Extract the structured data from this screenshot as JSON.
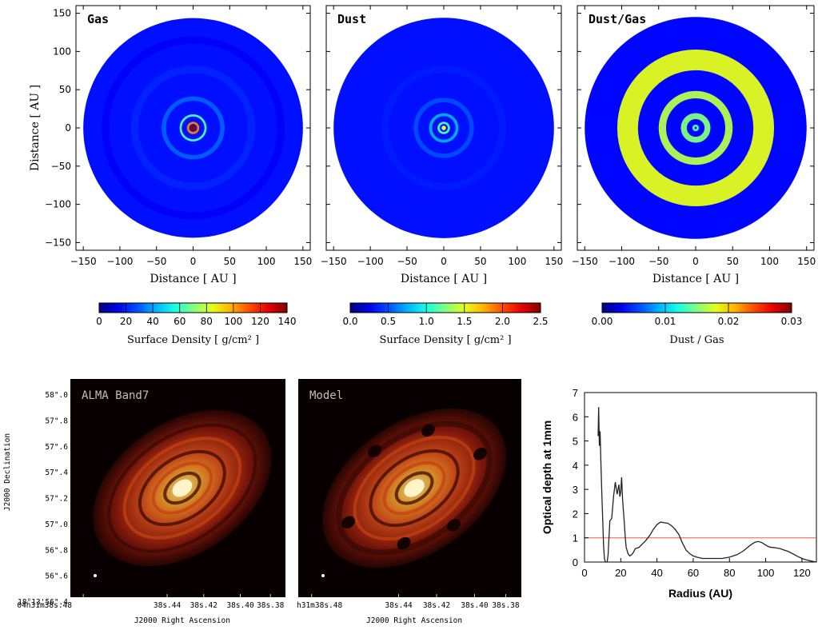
{
  "chart_data": [
    {
      "type": "heatmap",
      "title": "Gas",
      "xlabel": "Distance [ AU ]",
      "ylabel": "Distance [ AU ]",
      "xlim": [
        -160,
        160
      ],
      "ylim": [
        -160,
        160
      ],
      "xticks": [
        -150,
        -100,
        -50,
        0,
        50,
        100,
        150
      ],
      "yticks": [
        150,
        100,
        50,
        0,
        -50,
        -100,
        -150
      ],
      "colorbar": {
        "label": "Surface Density [ g/cm² ]",
        "range": [
          0,
          140
        ],
        "ticks": [
          "0",
          "20",
          "40",
          "60",
          "80",
          "100",
          "120",
          "140"
        ]
      },
      "colormap": "jet",
      "disk_radius": 150,
      "rings": [
        {
          "radius": 0,
          "width": 4,
          "value": 1.0
        },
        {
          "radius": 7,
          "width": 3,
          "value": 0.75
        },
        {
          "radius": 17,
          "width": 3,
          "value": 0.45
        },
        {
          "radius": 40,
          "width": 6,
          "value": 0.22
        },
        {
          "radius": 80,
          "width": 10,
          "value": 0.16
        },
        {
          "radius": 120,
          "width": 10,
          "value": 0.12
        }
      ]
    },
    {
      "type": "heatmap",
      "title": "Dust",
      "xlabel": "Distance [ AU ]",
      "ylabel": "",
      "xlim": [
        -160,
        160
      ],
      "ylim": [
        -160,
        160
      ],
      "xticks": [
        -150,
        -100,
        -50,
        0,
        50,
        100,
        150
      ],
      "colorbar": {
        "label": "Surface Density [ g/cm² ]",
        "range": [
          0.0,
          2.5
        ],
        "ticks": [
          "0.0",
          "0.5",
          "1.0",
          "1.5",
          "2.0",
          "2.5"
        ]
      },
      "colormap": "jet",
      "disk_radius": 150,
      "rings": [
        {
          "radius": 0,
          "width": 3,
          "value": 0.6
        },
        {
          "radius": 7,
          "width": 3,
          "value": 0.45
        },
        {
          "radius": 18,
          "width": 4,
          "value": 0.3
        },
        {
          "radius": 38,
          "width": 6,
          "value": 0.2
        },
        {
          "radius": 80,
          "width": 10,
          "value": 0.15
        }
      ]
    },
    {
      "type": "heatmap",
      "title": "Dust/Gas",
      "xlabel": "Distance [ AU ]",
      "ylabel": "",
      "xlim": [
        -160,
        160
      ],
      "ylim": [
        -160,
        160
      ],
      "xticks": [
        -150,
        -100,
        -50,
        0,
        50,
        100,
        150
      ],
      "colorbar": {
        "label": "Dust / Gas",
        "range": [
          0.0,
          0.03
        ],
        "ticks": [
          "0.00",
          "0.01",
          "0.02",
          "0.03"
        ]
      },
      "colormap": "jet",
      "disk_radius": 150,
      "rings": [
        {
          "radius": 3,
          "width": 3,
          "value": 0.45
        },
        {
          "radius": 16,
          "width": 8,
          "value": 0.5
        },
        {
          "radius": 45,
          "width": 10,
          "value": 0.55
        },
        {
          "radius": 92,
          "width": 28,
          "value": 0.6
        }
      ]
    },
    {
      "type": "heatmap",
      "title": "ALMA Band7",
      "xlabel": "J2000 Right Ascension",
      "ylabel": "J2000 Declination",
      "xticks": [
        "04h31m38s.48",
        "38s.44",
        "38s.42",
        "38s.40",
        "38s.38"
      ],
      "yticks": [
        "58\".0",
        "57\".8",
        "57\".6",
        "57\".4",
        "57\".2",
        "57\".0",
        "56\".8",
        "56\".6",
        "18°13'56\".4"
      ],
      "colormap": "hot"
    },
    {
      "type": "heatmap",
      "title": "Model",
      "xlabel": "J2000 Right Ascension",
      "xticks": [
        "h31m38s.48",
        "38s.44",
        "38s.42",
        "38s.40",
        "38s.38"
      ],
      "colormap": "hot"
    },
    {
      "type": "line",
      "title": "",
      "xlabel": "Radius (AU)",
      "ylabel": "Optical depth at 1mm",
      "xlim": [
        0,
        128
      ],
      "ylim": [
        0,
        7
      ],
      "xticks": [
        0,
        20,
        40,
        60,
        80,
        100,
        120
      ],
      "yticks": [
        0,
        1,
        2,
        3,
        4,
        5,
        6,
        7
      ],
      "hline": {
        "y": 1,
        "color": "#ff5555"
      },
      "series": [
        {
          "x": [
            7.5,
            7.8,
            8.2,
            8.6,
            9.0,
            9.5,
            10,
            10.5,
            11,
            11.5,
            12,
            12.5,
            13,
            14,
            15,
            16,
            17,
            18,
            19,
            19.5,
            20,
            20.5,
            21,
            21.5,
            22,
            22.5,
            23,
            24,
            25,
            26,
            27,
            28,
            30,
            32,
            34,
            36,
            38,
            40,
            42,
            44,
            46,
            48,
            50,
            52,
            54,
            56,
            58,
            60,
            62,
            65,
            68,
            72,
            76,
            80,
            84,
            86,
            88,
            90,
            92,
            94,
            96,
            98,
            100,
            102,
            104,
            106,
            108,
            110,
            112,
            114,
            116,
            118,
            120,
            122,
            124,
            126,
            128
          ],
          "y": [
            5.2,
            6.4,
            4.8,
            5.4,
            4.2,
            3.0,
            1.8,
            0.7,
            0.15,
            0.0,
            0.0,
            0.0,
            0.3,
            1.7,
            1.8,
            2.7,
            3.3,
            2.8,
            3.2,
            2.7,
            2.9,
            3.5,
            2.6,
            2.1,
            1.6,
            1.0,
            0.6,
            0.35,
            0.25,
            0.3,
            0.4,
            0.55,
            0.6,
            0.75,
            0.9,
            1.1,
            1.35,
            1.55,
            1.65,
            1.62,
            1.6,
            1.5,
            1.35,
            1.15,
            0.8,
            0.5,
            0.35,
            0.25,
            0.2,
            0.15,
            0.15,
            0.15,
            0.15,
            0.2,
            0.3,
            0.38,
            0.48,
            0.6,
            0.72,
            0.82,
            0.85,
            0.8,
            0.7,
            0.62,
            0.6,
            0.58,
            0.55,
            0.5,
            0.45,
            0.38,
            0.3,
            0.22,
            0.15,
            0.1,
            0.06,
            0.03,
            0.0
          ]
        }
      ]
    }
  ]
}
